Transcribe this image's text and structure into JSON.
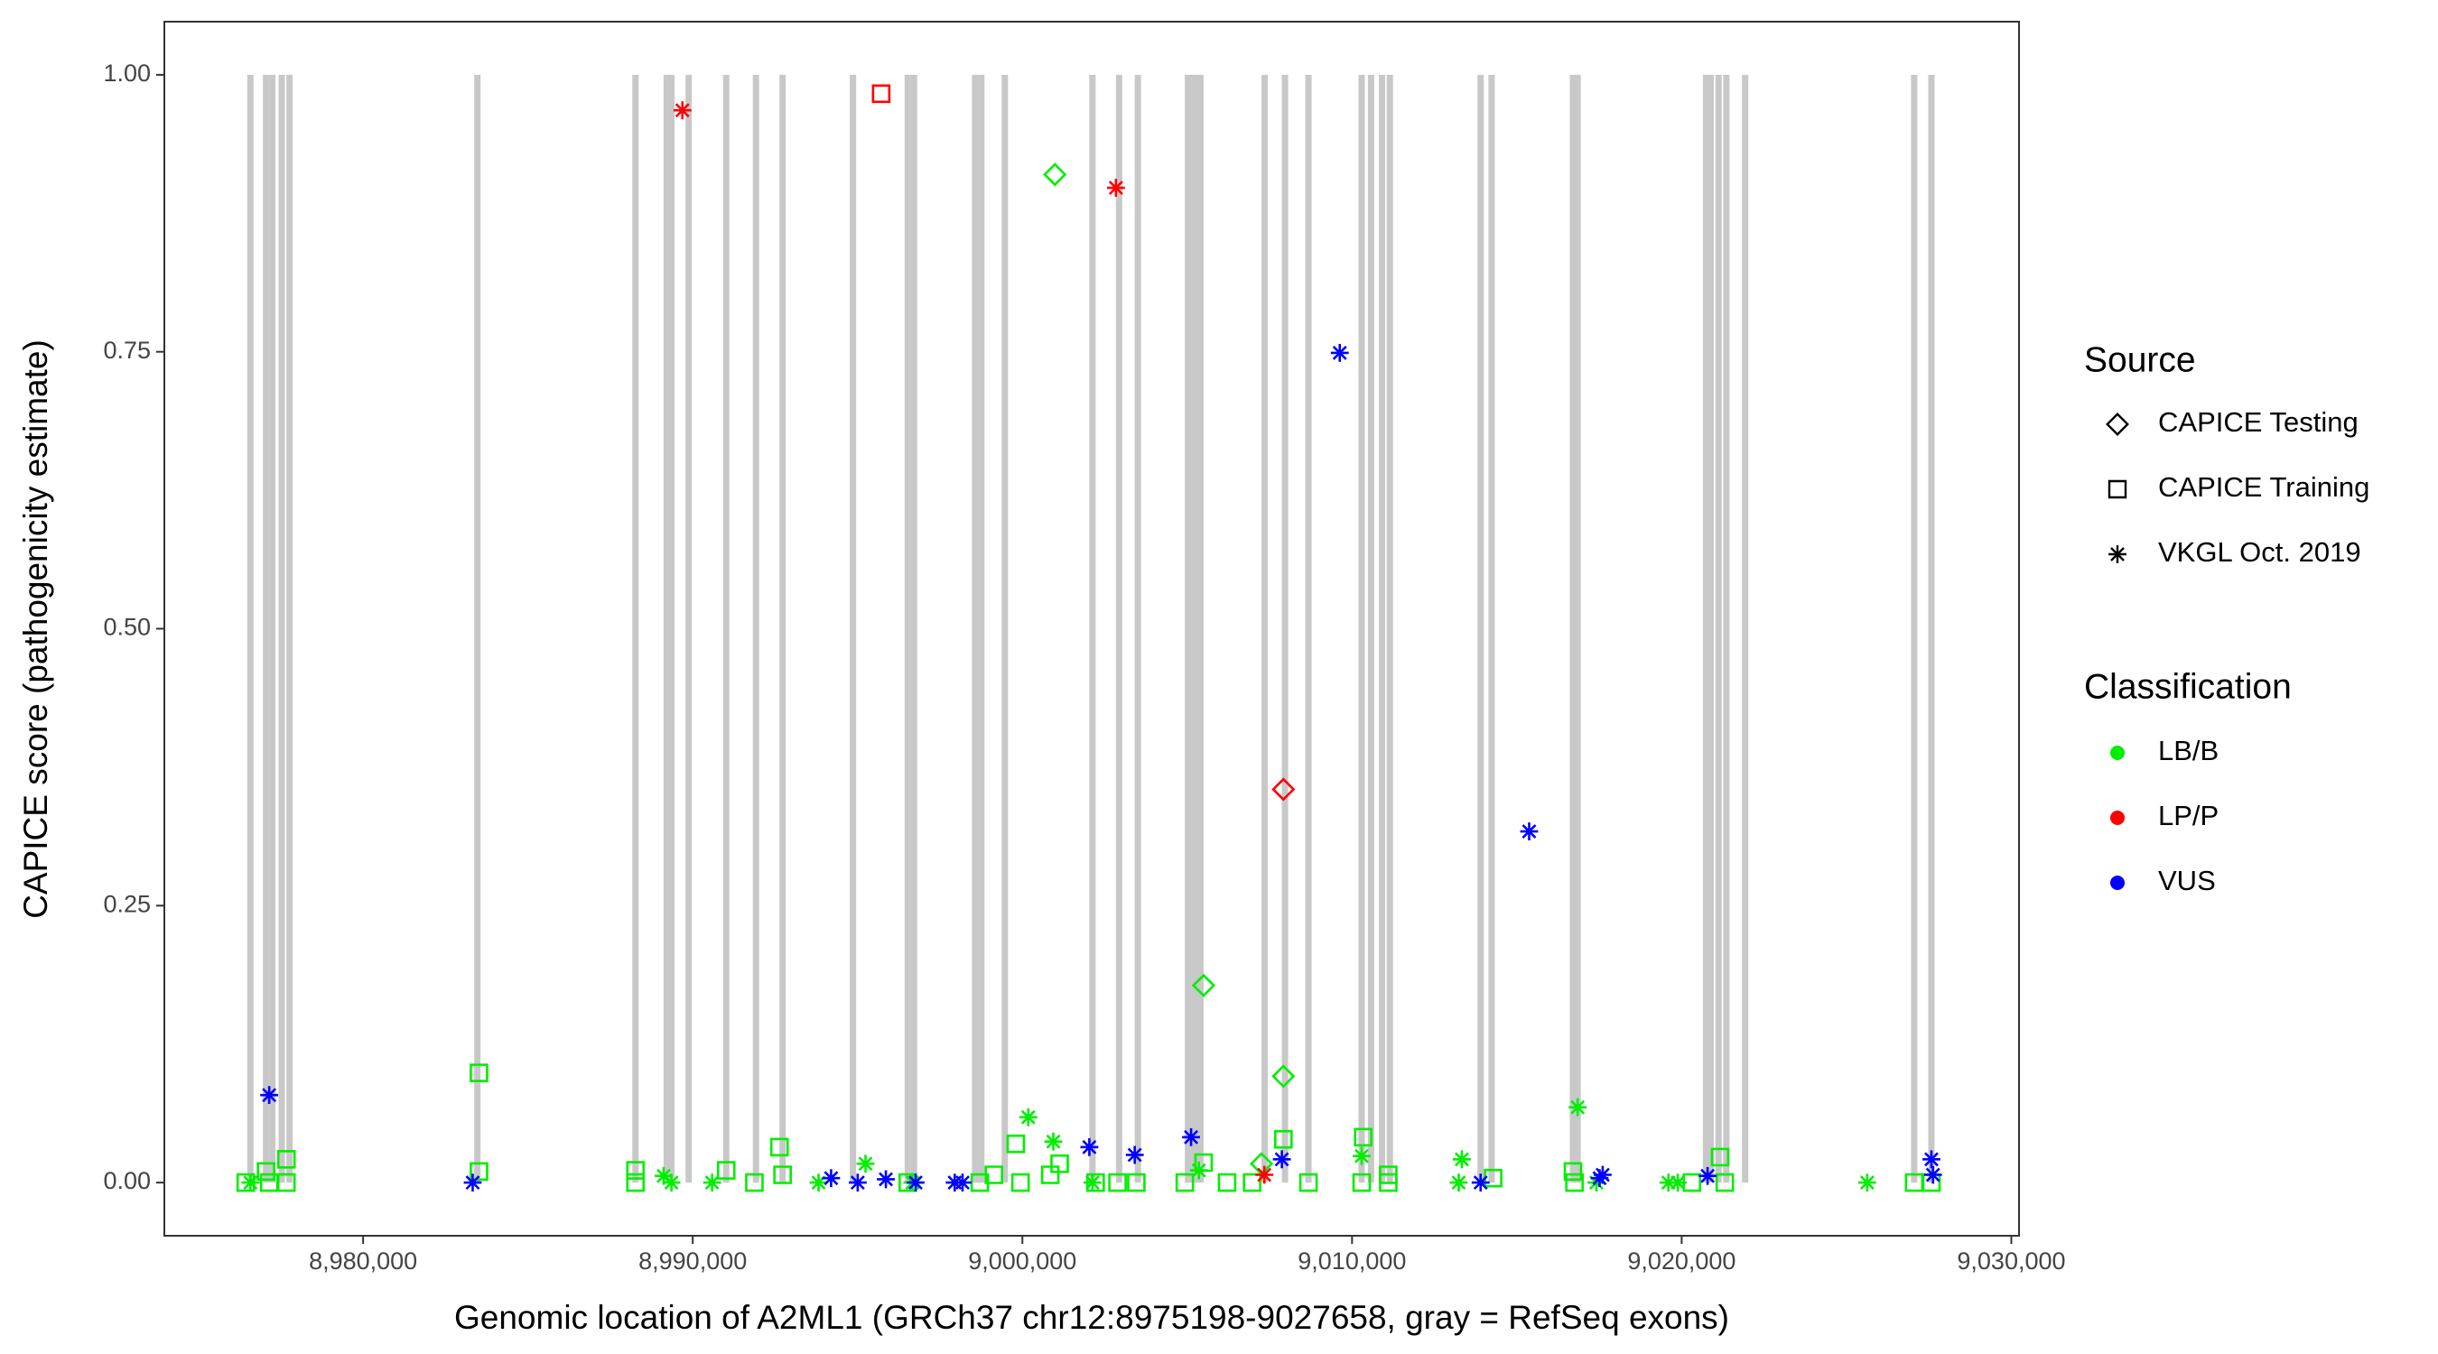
{
  "chart_data": {
    "type": "scatter",
    "xlabel": "Genomic location of A2ML1 (GRCh37 chr12:8975198-9027658, gray = RefSeq exons)",
    "ylabel": "CAPICE score (pathogenicity estimate)",
    "xlim": [
      8973970,
      9030234
    ],
    "ylim": [
      -0.048,
      1.048
    ],
    "xticks": [
      {
        "value": 8980000,
        "label": "8,980,000"
      },
      {
        "value": 8990000,
        "label": "8,990,000"
      },
      {
        "value": 9000000,
        "label": "9,000,000"
      },
      {
        "value": 9010000,
        "label": "9,010,000"
      },
      {
        "value": 9020000,
        "label": "9,020,000"
      },
      {
        "value": 9030000,
        "label": "9,030,000"
      }
    ],
    "yticks": [
      {
        "value": 0,
        "label": "0.00"
      },
      {
        "value": 0.25,
        "label": "0.25"
      },
      {
        "value": 0.5,
        "label": "0.50"
      },
      {
        "value": 0.75,
        "label": "0.75"
      },
      {
        "value": 1,
        "label": "1.00"
      }
    ],
    "exon_color": "#c8c8c8",
    "exon_span": [
      0,
      1
    ],
    "exons": [
      8976581,
      8977056,
      8977246,
      8977531,
      8977768,
      8983466,
      8988262,
      8989211,
      8989354,
      8989876,
      8991015,
      8991917,
      8992725,
      8994861,
      8996523,
      8996713,
      8998565,
      8998755,
      8999467,
      9002126,
      9002933,
      9003503,
      9005022,
      9005212,
      9005402,
      9007349,
      9007966,
      9008678,
      9010292,
      9010577,
      9010910,
      9011147,
      9013901,
      9014233,
      9016702,
      9016844,
      9020738,
      9020881,
      9021118,
      9021356,
      9021926,
      9027053,
      9027576
    ],
    "source_legend": {
      "title": "Source",
      "entries": [
        {
          "name": "CAPICE Testing",
          "shape": "diamond"
        },
        {
          "name": "CAPICE Training",
          "shape": "square"
        },
        {
          "name": "VKGL Oct. 2019",
          "shape": "asterisk"
        }
      ]
    },
    "classification_legend": {
      "title": "Classification",
      "entries": [
        {
          "name": "LB/B",
          "color": "#00ee00"
        },
        {
          "name": "LP/P",
          "color": "#ff0000"
        },
        {
          "name": "VUS",
          "color": "#0000ff"
        }
      ]
    },
    "series": [
      {
        "source": 0,
        "classification": 0,
        "x": [
          9000986,
          9005497,
          9007918,
          9007253
        ],
        "y": [
          0.91,
          0.178,
          0.096,
          0.017
        ]
      },
      {
        "source": 0,
        "classification": 1,
        "x": [
          9007918
        ],
        "y": [
          0.355
        ]
      },
      {
        "source": 1,
        "classification": 0,
        "x": [
          8983514,
          8983514,
          8976439,
          8977056,
          8977673,
          8977151,
          8977673,
          8988262,
          8988262,
          8991015,
          8991870,
          8992630,
          8992725,
          8996523,
          8998708,
          8999135,
          8999800,
          8999942,
          9000844,
          9001129,
          9002221,
          9002886,
          9003456,
          9004927,
          9005497,
          9006209,
          9006969,
          9007918,
          9008678,
          9010339,
          9010292,
          9011099,
          9011099,
          9014281,
          9016702,
          9016749,
          9020311,
          9021166,
          9021308,
          9027053,
          9027576
        ],
        "y": [
          0.099,
          0.01,
          0,
          0.01,
          0.021,
          0,
          0,
          0.011,
          0,
          0.011,
          0,
          0.032,
          0.007,
          0,
          0,
          0.007,
          0.035,
          0,
          0.007,
          0.017,
          0,
          0,
          0,
          0,
          0.018,
          0,
          0,
          0.039,
          0,
          0.041,
          0,
          0.007,
          0,
          0.004,
          0.01,
          0,
          0,
          0.023,
          0,
          0,
          0
        ]
      },
      {
        "source": 1,
        "classification": 1,
        "x": [
          8995716
        ],
        "y": [
          0.983
        ]
      },
      {
        "source": 2,
        "classification": 0,
        "x": [
          8976581,
          8989116,
          8989354,
          8990588,
          8993817,
          8995241,
          8996665,
          9000179,
          9000939,
          9002126,
          9005354,
          9010292,
          9013331,
          9013236,
          9016844,
          9017414,
          9019598,
          9019883,
          9025628
        ],
        "y": [
          0,
          0.006,
          0,
          0,
          0,
          0.017,
          0,
          0.059,
          0.037,
          0,
          0.011,
          0.024,
          0.021,
          0,
          0.068,
          0,
          0,
          0,
          0
        ]
      },
      {
        "source": 2,
        "classification": 1,
        "x": [
          8989686,
          9002838,
          9007339
        ],
        "y": [
          0.968,
          0.898,
          0.007
        ]
      },
      {
        "source": 2,
        "classification": 2,
        "x": [
          8977151,
          8983324,
          8994197,
          8995004,
          8995858,
          8996760,
          8997947,
          8998185,
          9002031,
          9003408,
          9005117,
          9007871,
          9009628,
          9013901,
          9015373,
          9017509,
          9017604,
          9020786,
          9027576,
          9027624
        ],
        "y": [
          0.079,
          0,
          0.004,
          0,
          0.003,
          0,
          0,
          0,
          0.032,
          0.025,
          0.041,
          0.021,
          0.749,
          0,
          0.317,
          0.004,
          0.007,
          0.006,
          0.021,
          0.007
        ]
      }
    ]
  }
}
